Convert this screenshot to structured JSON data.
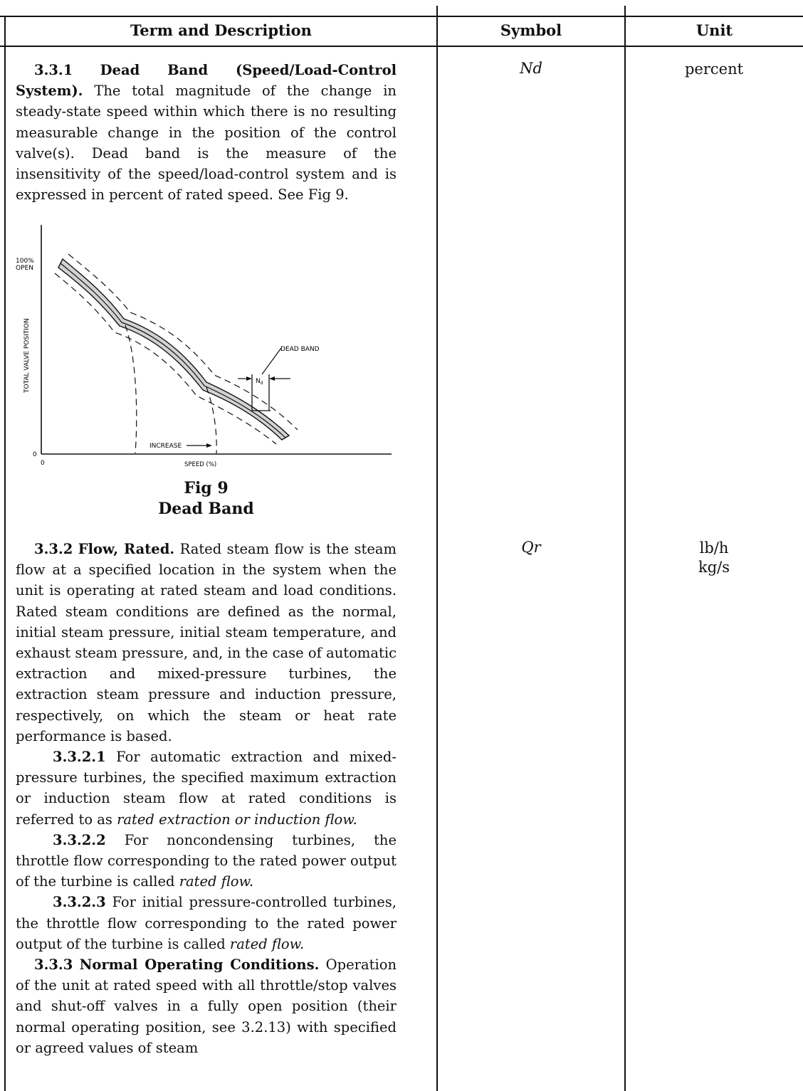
{
  "table": {
    "headers": {
      "term": "Term and Description",
      "symbol": "Symbol",
      "unit": "Unit"
    }
  },
  "entries": {
    "e331": {
      "number": "3.3.1",
      "title": "Dead Band (Speed/Load-Control System).",
      "text": "The total magnitude of the change in steady-state speed within which there is no resulting measurable change in the position of the control valve(s). Dead band is the measure of the insensitivity of the speed/load-control system and is expressed in percent of rated speed. See Fig 9.",
      "symbol": "Nd",
      "unit": "percent"
    },
    "e332": {
      "number": "3.3.2",
      "title": "Flow, Rated.",
      "text": "Rated steam flow is the steam flow at a specified location in the system when the unit is operating at rated steam and load conditions. Rated steam conditions are defined as the normal, initial steam pressure, initial steam temperature, and exhaust steam pressure, and, in the case of automatic extraction and mixed-pressure turbines, the extraction steam pressure and induction pressure, respectively, on which the steam or heat rate performance is based.",
      "symbol": "Qr",
      "unit_line1": "lb/h",
      "unit_line2": "kg/s",
      "s1_number": "3.3.2.1",
      "s1_text": "For automatic extraction and mixed-pressure turbines, the specified maximum extraction or induction steam flow at rated conditions is referred to as",
      "s1_term": "rated extraction or induction flow.",
      "s2_number": "3.3.2.2",
      "s2_text": "For noncondensing turbines, the throttle flow corresponding to the rated power output of the turbine is called",
      "s2_term": "rated flow.",
      "s3_number": "3.3.2.3",
      "s3_text": "For initial pressure-controlled turbines, the throttle flow corresponding to the rated power output of the turbine is called",
      "s3_term": "rated flow."
    },
    "e333": {
      "number": "3.3.3",
      "title": "Normal Operating Conditions.",
      "text": "Operation of the unit at rated speed with all throttle/stop valves and shut-off valves in a fully open position (their normal operating position, see 3.2.13) with specified or agreed values of steam"
    }
  },
  "figure": {
    "caption_line1": "Fig 9",
    "caption_line2": "Dead Band",
    "y_top_label_1": "100%",
    "y_top_label_2": "OPEN",
    "y_zero": "0",
    "x_zero": "0",
    "y_axis_label": "TOTAL VALVE POSITION",
    "x_axis_label": "SPEED (%)",
    "dead_band_label": "DEAD BAND",
    "nd_label": "N",
    "nd_sub": "d",
    "increase_label": "INCREASE"
  }
}
